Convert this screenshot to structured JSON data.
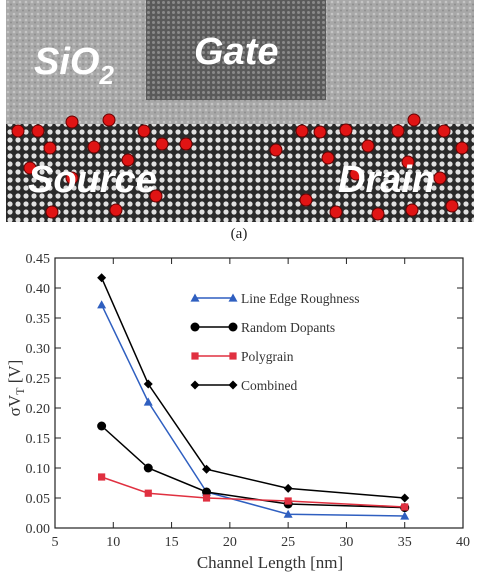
{
  "micrograph": {
    "caption": "(a)",
    "labels": {
      "oxide_main": "SiO",
      "oxide_sub": "2",
      "gate": "Gate",
      "source": "Source",
      "drain": "Drain"
    },
    "colors": {
      "dopant": "#e01414",
      "label_text": "#ffffff"
    }
  },
  "chart_data": {
    "type": "line",
    "x": [
      9,
      13,
      18,
      25,
      35
    ],
    "xlabel": "Channel Length [nm]",
    "ylabel_main": "σV",
    "ylabel_sub": "T",
    "ylabel_unit": " [V]",
    "xlim": [
      5,
      40
    ],
    "ylim": [
      0,
      0.45
    ],
    "xticks": [
      "5",
      "10",
      "15",
      "20",
      "25",
      "30",
      "35",
      "40"
    ],
    "yticks": [
      "0.00",
      "0.05",
      "0.10",
      "0.15",
      "0.20",
      "0.25",
      "0.30",
      "0.35",
      "0.40",
      "0.45"
    ],
    "grid": false,
    "legend_position": "top-right",
    "series": [
      {
        "name": "Line Edge Roughness",
        "color": "#2f5fc0",
        "marker": "triangle",
        "values": [
          0.372,
          0.21,
          0.06,
          0.023,
          0.02
        ]
      },
      {
        "name": "Random Dopants",
        "color": "#000000",
        "marker": "circle",
        "values": [
          0.17,
          0.1,
          0.06,
          0.04,
          0.034
        ]
      },
      {
        "name": "Polygrain",
        "color": "#e03040",
        "marker": "square",
        "values": [
          0.085,
          0.058,
          0.05,
          0.045,
          0.035
        ]
      },
      {
        "name": "Combined",
        "color": "#000000",
        "marker": "diamond",
        "values": [
          0.417,
          0.24,
          0.098,
          0.066,
          0.05
        ]
      }
    ]
  }
}
